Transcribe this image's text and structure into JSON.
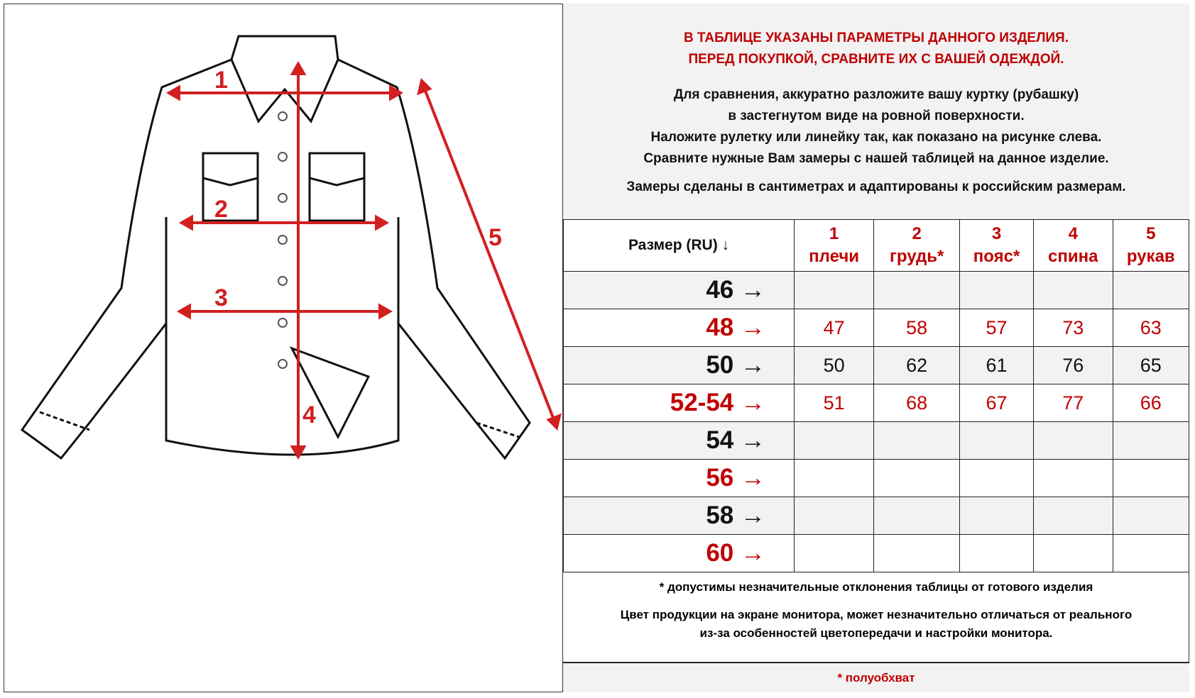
{
  "diagram": {
    "measure_labels": [
      "1",
      "2",
      "3",
      "4",
      "5"
    ],
    "accent_color": "#c00000"
  },
  "intro": {
    "warning_lines": [
      "В ТАБЛИЦЕ УКАЗАНЫ ПАРАМЕТРЫ ДАННОГО ИЗДЕЛИЯ.",
      "ПЕРЕД ПОКУПКОЙ, СРАВНИТЕ ИХ С ВАШЕЙ ОДЕЖДОЙ."
    ],
    "instruction_lines": [
      "Для сравнения, аккуратно разложите вашу куртку (рубашку)",
      "в застегнутом виде на ровной поверхности.",
      "Наложите рулетку или линейку так, как показано на рисунке слева.",
      "Сравните нужные Вам замеры с нашей таблицей на данное изделие."
    ],
    "units_note": "Замеры сделаны в сантиметрах и адаптированы к российским размерам."
  },
  "table": {
    "size_header": "Размер (RU) ↓",
    "columns": [
      {
        "num": "1",
        "label": "плечи"
      },
      {
        "num": "2",
        "label": "грудь*"
      },
      {
        "num": "3",
        "label": "пояс*"
      },
      {
        "num": "4",
        "label": "спина"
      },
      {
        "num": "5",
        "label": "рукав"
      }
    ],
    "rows": [
      {
        "size": "46 →",
        "values": [
          "",
          "",
          "",
          "",
          ""
        ]
      },
      {
        "size": "48 →",
        "values": [
          "47",
          "58",
          "57",
          "73",
          "63"
        ]
      },
      {
        "size": "50 →",
        "values": [
          "50",
          "62",
          "61",
          "76",
          "65"
        ]
      },
      {
        "size": "52-54 →",
        "values": [
          "51",
          "68",
          "67",
          "77",
          "66"
        ]
      },
      {
        "size": "54 →",
        "values": [
          "",
          "",
          "",
          "",
          ""
        ]
      },
      {
        "size": "56 →",
        "values": [
          "",
          "",
          "",
          "",
          ""
        ]
      },
      {
        "size": "58 →",
        "values": [
          "",
          "",
          "",
          "",
          ""
        ]
      },
      {
        "size": "60 →",
        "values": [
          "",
          "",
          "",
          "",
          ""
        ]
      }
    ]
  },
  "notes": {
    "deviation": "* допустимы незначительные отклонения таблицы от готового изделия",
    "color_lines": [
      "Цвет продукции на экране монитора, может незначительно отличаться от реального",
      "из-за особенностей цветопередачи и настройки монитора."
    ]
  },
  "footer": {
    "half_girth": "*   полуобхват"
  }
}
